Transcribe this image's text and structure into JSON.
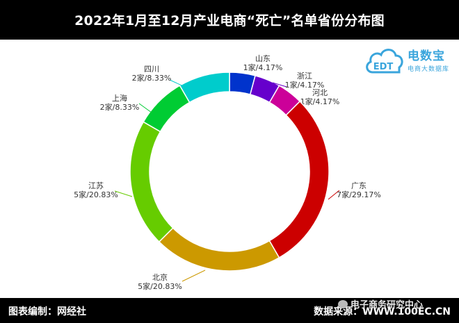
{
  "header": {
    "title": "2022年1月至12月产业电商“死亡”名单省份分布图"
  },
  "footer": {
    "left": "图表编制：网经社",
    "right": "数据来源：WWW.100EC.CN",
    "watermark": "电子商务研究中心"
  },
  "logo": {
    "name": "电数宝",
    "tagline": "电商大数据库",
    "cloud_text": "EDT"
  },
  "chart_data": {
    "type": "pie",
    "donut": true,
    "title": "2022年1月至12月产业电商“死亡”名单省份分布图",
    "slices": [
      {
        "name": "山东",
        "count": 1,
        "value": 4.17,
        "label": "1家/4.17%",
        "color": "#0033cc"
      },
      {
        "name": "浙江",
        "count": 1,
        "value": 4.17,
        "label": "1家/4.17%",
        "color": "#6600cc"
      },
      {
        "name": "河北",
        "count": 1,
        "value": 4.17,
        "label": "1家/4.17%",
        "color": "#cc0099"
      },
      {
        "name": "广东",
        "count": 7,
        "value": 29.17,
        "label": "7家/29.17%",
        "color": "#cc0000"
      },
      {
        "name": "北京",
        "count": 5,
        "value": 20.83,
        "label": "5家/20.83%",
        "color": "#cc9900"
      },
      {
        "name": "江苏",
        "count": 5,
        "value": 20.83,
        "label": "5家/20.83%",
        "color": "#66cc00"
      },
      {
        "name": "上海",
        "count": 2,
        "value": 8.33,
        "label": "2家/8.33%",
        "color": "#00cc33"
      },
      {
        "name": "四川",
        "count": 2,
        "value": 8.33,
        "label": "2家/8.33%",
        "color": "#00cccc"
      }
    ]
  }
}
